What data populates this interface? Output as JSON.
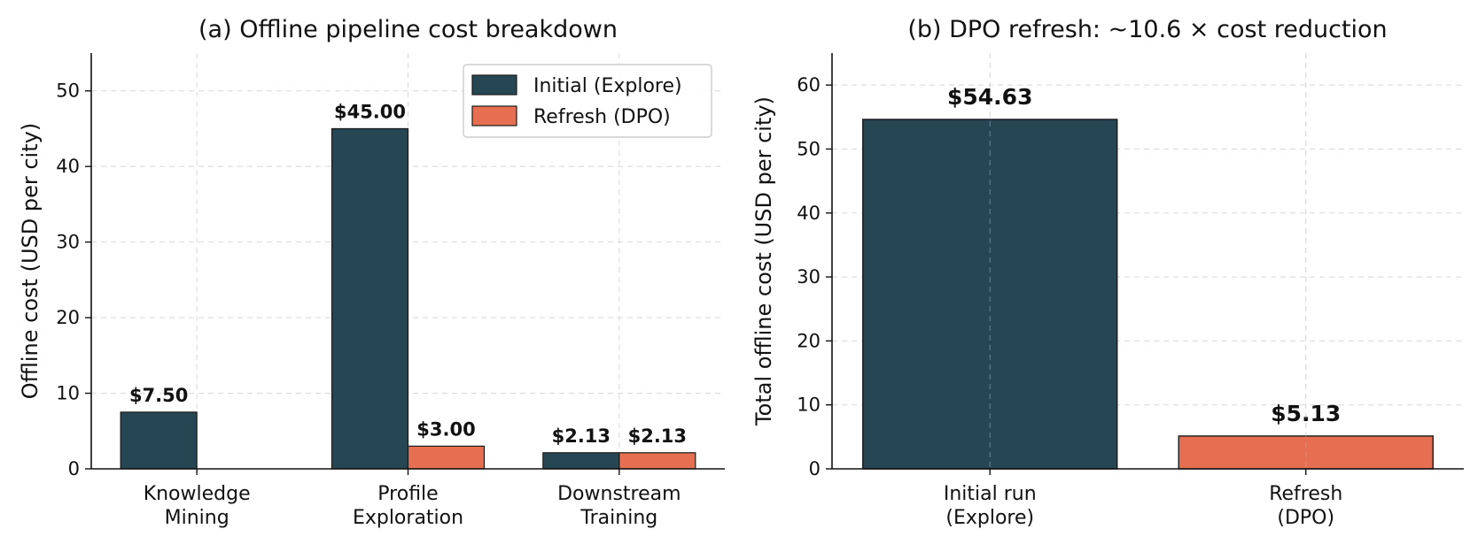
{
  "chart_data": [
    {
      "type": "bar",
      "title": "(a) Offline pipeline cost breakdown",
      "xlabel": "",
      "ylabel": "Offline cost (USD per city)",
      "ylim": [
        0,
        55
      ],
      "yticks": [
        0,
        10,
        20,
        30,
        40,
        50
      ],
      "grid": true,
      "legend_position": "top-right",
      "categories": [
        [
          "Knowledge",
          "Mining"
        ],
        [
          "Profile",
          "Exploration"
        ],
        [
          "Downstream",
          "Training"
        ]
      ],
      "series": [
        {
          "name": "Initial (Explore)",
          "color": "#264653",
          "values": [
            7.5,
            45.0,
            2.13
          ],
          "labels": [
            "$7.50",
            "$45.00",
            "$2.13"
          ]
        },
        {
          "name": "Refresh (DPO)",
          "color": "#e76f51",
          "values": [
            null,
            3.0,
            2.13
          ],
          "labels": [
            null,
            "$3.00",
            "$2.13"
          ]
        }
      ]
    },
    {
      "type": "bar",
      "title": "(b) DPO refresh: ~10.6 × cost reduction",
      "xlabel": "",
      "ylabel": "Total offline cost (USD per city)",
      "ylim": [
        0,
        65
      ],
      "yticks": [
        0,
        10,
        20,
        30,
        40,
        50,
        60
      ],
      "grid": true,
      "categories": [
        [
          "Initial run",
          "(Explore)"
        ],
        [
          "Refresh",
          "(DPO)"
        ]
      ],
      "values": [
        54.63,
        5.13
      ],
      "labels": [
        "$54.63",
        "$5.13"
      ],
      "colors": [
        "#264653",
        "#e76f51"
      ]
    }
  ]
}
